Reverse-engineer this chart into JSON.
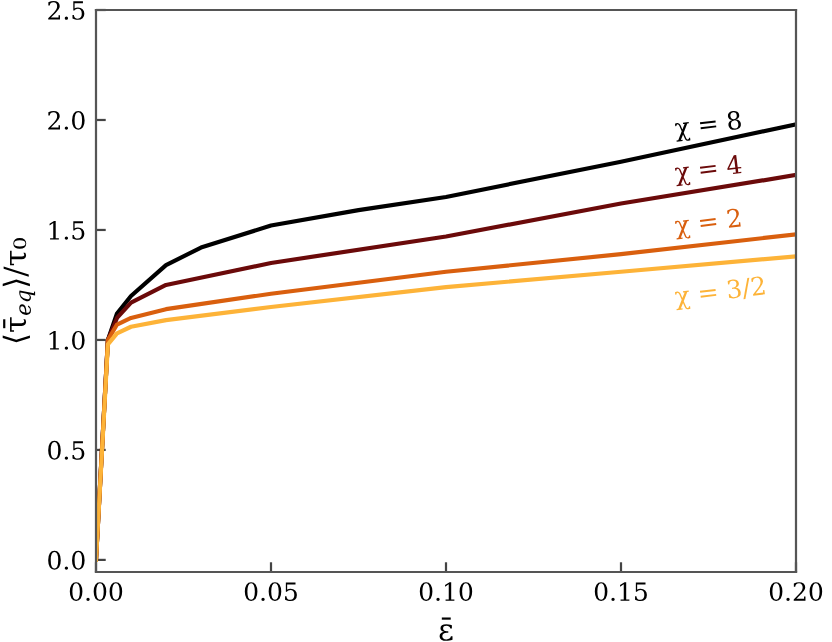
{
  "chart_data": {
    "type": "line",
    "xlabel": "ε̄",
    "ylabel": "⟨τ̄$_{eq}$⟩/τ₀",
    "xlim": [
      0,
      0.2
    ],
    "ylim": [
      -0.055,
      2.5
    ],
    "xticks": [
      {
        "value": 0,
        "label": "0.00"
      },
      {
        "value": 0.05,
        "label": "0.05"
      },
      {
        "value": 0.1,
        "label": "0.10"
      },
      {
        "value": 0.15,
        "label": "0.15"
      },
      {
        "value": 0.2,
        "label": "0.20"
      }
    ],
    "yticks": [
      {
        "value": 0,
        "label": "0.0"
      },
      {
        "value": 0.5,
        "label": "0.5"
      },
      {
        "value": 1,
        "label": "1.0"
      },
      {
        "value": 1.5,
        "label": "1.5"
      },
      {
        "value": 2,
        "label": "2.0"
      },
      {
        "value": 2.5,
        "label": "2.5"
      }
    ],
    "grid": false,
    "legend": false,
    "marker": "none",
    "line_style": "solid",
    "series": [
      {
        "name": "χ = 8",
        "color": "#000000",
        "x": [
          0,
          0.0034,
          0.006,
          0.01,
          0.02,
          0.03,
          0.05,
          0.075,
          0.1,
          0.15,
          0.2
        ],
        "values": [
          0,
          1.0,
          1.12,
          1.2,
          1.34,
          1.42,
          1.52,
          1.59,
          1.65,
          1.81,
          1.98
        ]
      },
      {
        "name": "χ = 4",
        "color": "#6b0a0a",
        "x": [
          0,
          0.0034,
          0.006,
          0.01,
          0.02,
          0.05,
          0.1,
          0.15,
          0.2
        ],
        "values": [
          0,
          1.0,
          1.1,
          1.17,
          1.25,
          1.35,
          1.47,
          1.62,
          1.75
        ]
      },
      {
        "name": "χ = 2",
        "color": "#d95f0e",
        "x": [
          0,
          0.0034,
          0.006,
          0.01,
          0.02,
          0.05,
          0.1,
          0.15,
          0.2
        ],
        "values": [
          0,
          1.0,
          1.07,
          1.1,
          1.14,
          1.21,
          1.31,
          1.39,
          1.48
        ]
      },
      {
        "name": "χ = 3/2",
        "color": "#fdb338",
        "x": [
          0,
          0.0034,
          0.006,
          0.01,
          0.02,
          0.05,
          0.1,
          0.15,
          0.2
        ],
        "values": [
          0,
          0.98,
          1.03,
          1.06,
          1.09,
          1.15,
          1.24,
          1.31,
          1.38
        ]
      }
    ]
  }
}
